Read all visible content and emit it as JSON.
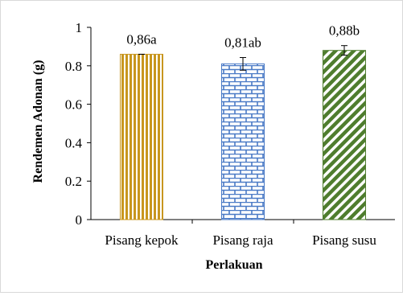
{
  "chart_data": {
    "type": "bar",
    "categories": [
      "Pisang kepok",
      "Pisang raja",
      "Pisang susu"
    ],
    "values": [
      0.86,
      0.81,
      0.88
    ],
    "error": [
      0.0,
      0.033,
      0.025
    ],
    "data_labels": [
      "0,86a",
      "0,81ab",
      "0,88b"
    ],
    "ylim": [
      0,
      1
    ],
    "yticks": [
      0,
      0.2,
      0.4,
      0.6,
      0.8,
      1
    ],
    "ytick_labels": [
      "0",
      "0.2",
      "0.4",
      "0.6",
      "0.8",
      "1"
    ],
    "xlabel": "Perlakuan",
    "ylabel": "Rendemen  Adonan (g)",
    "grid": false,
    "legend": "none",
    "bar_styles": [
      {
        "pattern": "vertical-stripes",
        "color": "#c8961e"
      },
      {
        "pattern": "brick",
        "color": "#4a7ac6"
      },
      {
        "pattern": "diagonal-stripes",
        "color": "#4f7d2e"
      }
    ]
  }
}
